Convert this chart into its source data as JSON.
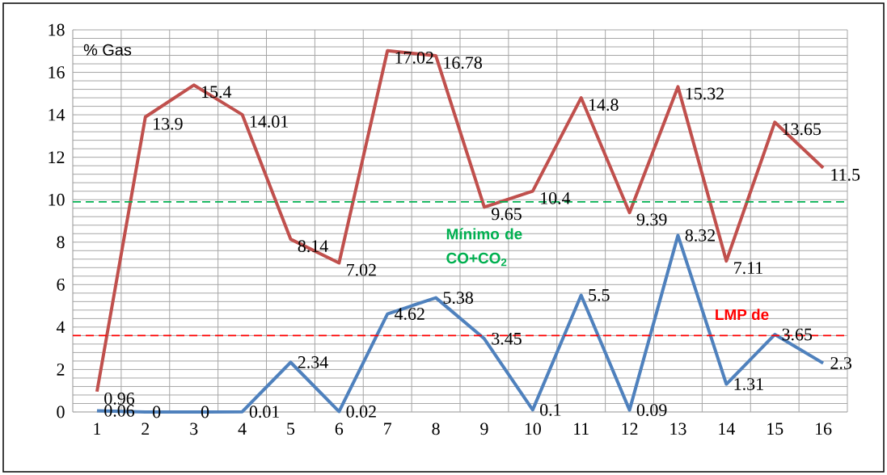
{
  "chart_data": {
    "type": "line",
    "ylabel": "% Gas",
    "categories": [
      "1",
      "2",
      "3",
      "4",
      "5",
      "6",
      "7",
      "8",
      "9",
      "10",
      "11",
      "12",
      "13",
      "14",
      "15",
      "16"
    ],
    "series": [
      {
        "color": "#c0504d",
        "values": [
          0.96,
          13.9,
          15.4,
          14.01,
          8.14,
          7.02,
          17.02,
          16.78,
          9.65,
          10.4,
          14.8,
          9.39,
          15.32,
          7.11,
          13.65,
          11.5
        ]
      },
      {
        "color": "#4f81bd",
        "values": [
          0.06,
          0,
          0,
          0.01,
          2.34,
          0.02,
          4.62,
          5.38,
          3.45,
          0.1,
          5.5,
          0.09,
          8.32,
          1.31,
          3.65,
          2.3
        ]
      }
    ],
    "ylim": [
      0,
      18
    ],
    "yticks": [
      0,
      2,
      4,
      6,
      8,
      10,
      12,
      14,
      16,
      18
    ],
    "grid": true,
    "marker": "none",
    "line_style": "solid",
    "data_labels": true,
    "ref_lines": [
      {
        "axis": "y",
        "value": 9.9,
        "label": "Mínimo de CO+CO$_{2}$",
        "color": "#00b050",
        "line_style": "dashed"
      },
      {
        "axis": "y",
        "value": 3.6,
        "label": "LMP de",
        "color": "#ff0000",
        "line_style": "dashed"
      }
    ]
  }
}
